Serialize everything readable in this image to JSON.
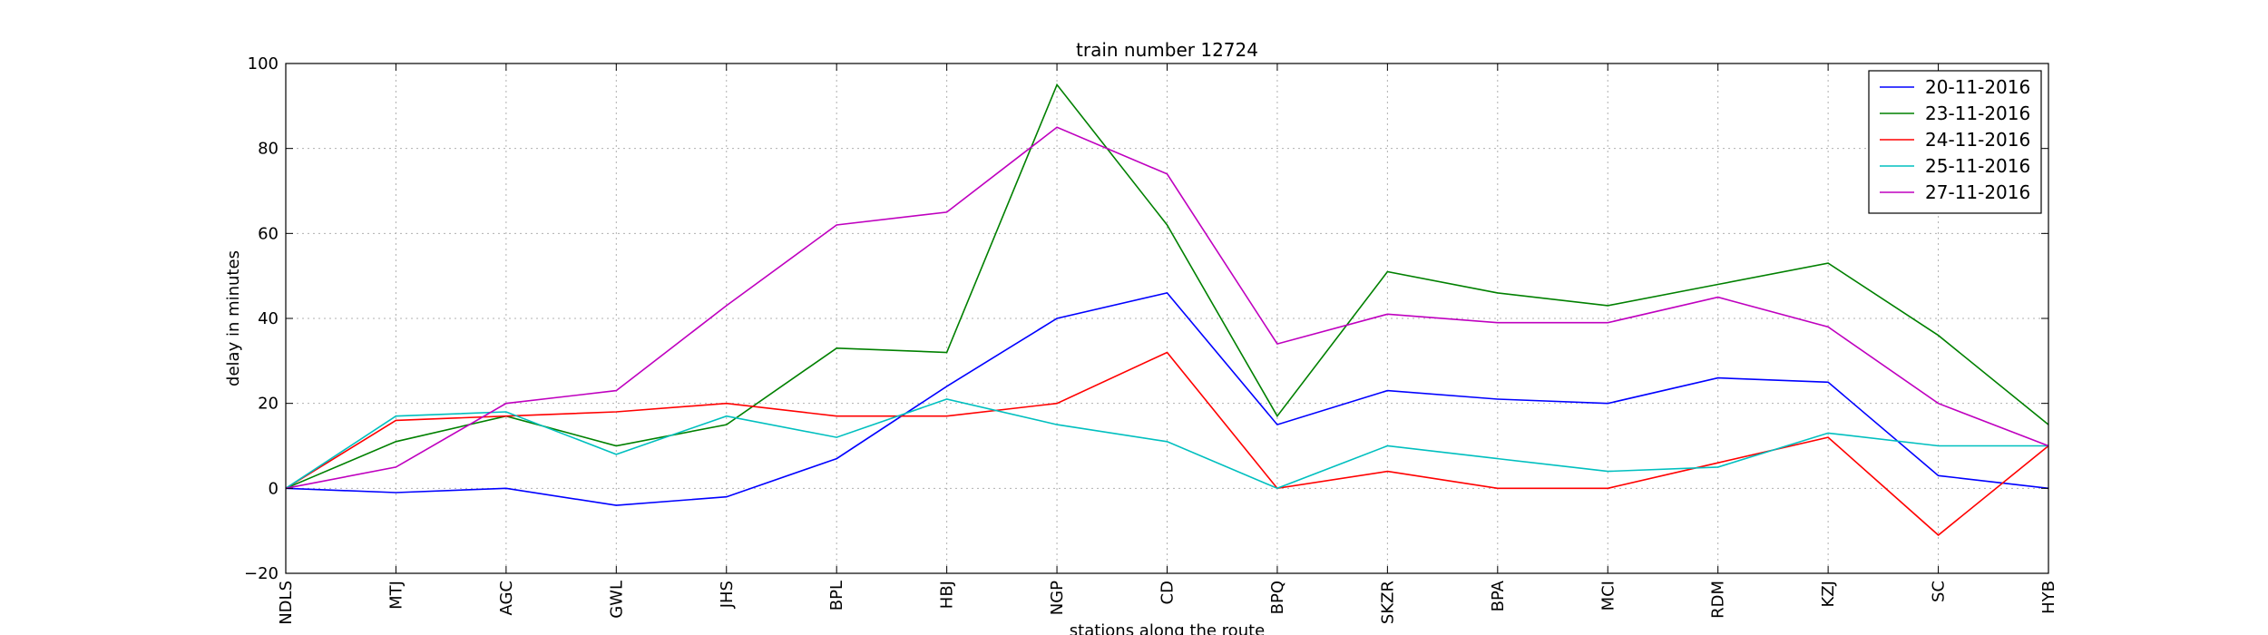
{
  "chart_data": {
    "type": "line",
    "title": "train number 12724",
    "xlabel": "stations along the route",
    "ylabel": "delay in minutes",
    "categories": [
      "NDLS",
      "MTJ",
      "AGC",
      "GWL",
      "JHS",
      "BPL",
      "HBJ",
      "NGP",
      "CD",
      "BPQ",
      "SKZR",
      "BPA",
      "MCI",
      "RDM",
      "KZJ",
      "SC",
      "HYB"
    ],
    "ylim": [
      -20,
      100
    ],
    "yticks": [
      "−20",
      "0",
      "20",
      "40",
      "60",
      "80",
      "100"
    ],
    "grid": true,
    "legend_position": "top-right",
    "series": [
      {
        "name": "20-11-2016",
        "color": "#0000ff",
        "values": [
          0,
          -1,
          0,
          -4,
          -2,
          7,
          24,
          40,
          46,
          15,
          23,
          21,
          20,
          26,
          25,
          3,
          0
        ]
      },
      {
        "name": "23-11-2016",
        "color": "#008000",
        "values": [
          0,
          11,
          17,
          10,
          15,
          33,
          32,
          95,
          62,
          17,
          51,
          46,
          43,
          48,
          53,
          36,
          15
        ]
      },
      {
        "name": "24-11-2016",
        "color": "#ff0000",
        "values": [
          0,
          16,
          17,
          18,
          20,
          17,
          17,
          20,
          32,
          0,
          4,
          0,
          0,
          6,
          12,
          -11,
          10
        ]
      },
      {
        "name": "25-11-2016",
        "color": "#00bfbf",
        "values": [
          0,
          17,
          18,
          8,
          17,
          12,
          21,
          15,
          11,
          0,
          10,
          7,
          4,
          5,
          13,
          10,
          10
        ]
      },
      {
        "name": "27-11-2016",
        "color": "#bf00bf",
        "values": [
          0,
          5,
          20,
          23,
          43,
          62,
          65,
          85,
          74,
          34,
          41,
          39,
          39,
          45,
          38,
          20,
          10
        ]
      }
    ]
  }
}
